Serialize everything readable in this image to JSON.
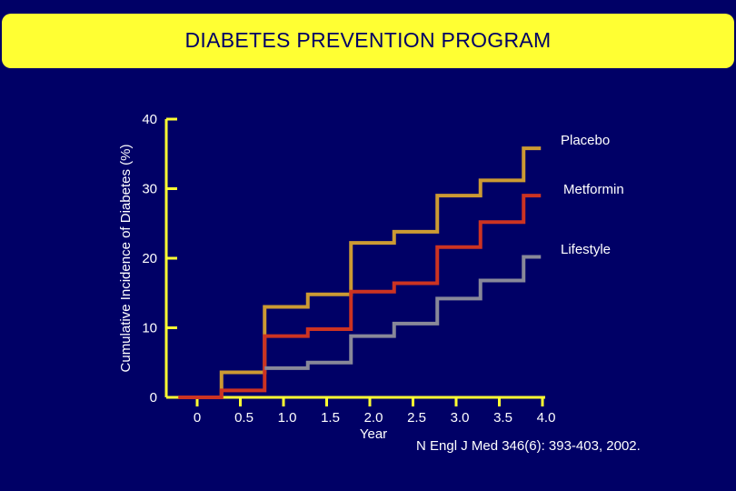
{
  "title": "DIABETES PREVENTION PROGRAM",
  "citation": "N Engl J Med 346(6): 393-403, 2002.",
  "chart_data": {
    "type": "line",
    "step": true,
    "title": "DIABETES PREVENTION PROGRAM",
    "xlabel": "Year",
    "ylabel": "Cumulative Incidence of Diabetes (%)",
    "xlim": [
      -0.25,
      4.0
    ],
    "ylim": [
      0,
      40
    ],
    "xticks": [
      0,
      0.5,
      1.0,
      1.5,
      2.0,
      2.5,
      3.0,
      3.5,
      4.0
    ],
    "xtick_labels": [
      "0",
      "0.5",
      "1.0",
      "1.5",
      "2.0",
      "2.5",
      "3.0",
      "3.5",
      "4.0"
    ],
    "yticks": [
      0,
      10,
      20,
      30,
      40
    ],
    "ytick_labels": [
      "0",
      "10",
      "20",
      "30",
      "40"
    ],
    "series": [
      {
        "name": "Placebo",
        "color": "#cc9a33",
        "x": [
          -0.25,
          0.25,
          0.75,
          1.25,
          1.75,
          2.25,
          2.75,
          3.25,
          3.75,
          3.95
        ],
        "y": [
          0,
          3.6,
          13,
          14.8,
          22.2,
          23.8,
          29,
          31.2,
          35.8,
          35.8
        ]
      },
      {
        "name": "Metformin",
        "color": "#cc3322",
        "x": [
          -0.25,
          0.25,
          0.75,
          1.25,
          1.75,
          2.25,
          2.75,
          3.25,
          3.75,
          3.95
        ],
        "y": [
          0,
          1.0,
          8.8,
          9.8,
          15.2,
          16.4,
          21.6,
          25.2,
          29,
          29
        ]
      },
      {
        "name": "Lifestyle",
        "color": "#888899",
        "x": [
          0.75,
          1.25,
          1.75,
          2.25,
          2.75,
          3.25,
          3.75,
          3.95
        ],
        "y": [
          4.2,
          5.0,
          8.8,
          10.6,
          14.2,
          16.8,
          20.2,
          20.2
        ]
      }
    ]
  }
}
